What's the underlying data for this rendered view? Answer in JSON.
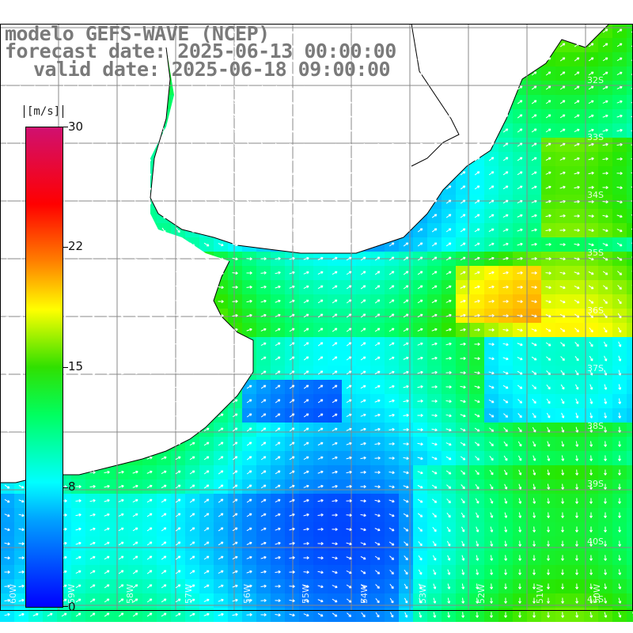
{
  "title": {
    "line1": "modelo GEFS-WAVE (NCEP)",
    "line2": "forecast date: 2025-06-13 00:00:00",
    "line3": "valid date: 2025-06-18 09:00:00"
  },
  "colorbar": {
    "unit": "[m/s]",
    "ticks": [
      "30",
      "22",
      "15",
      "8",
      "0"
    ],
    "colors": [
      "#0000ff",
      "#00a0ff",
      "#00ffff",
      "#00ff60",
      "#30e000",
      "#ffff00",
      "#ff8000",
      "#ff0000",
      "#d01070"
    ]
  },
  "grid": {
    "lat_labels": [
      "32S",
      "33S",
      "34S",
      "35S",
      "36S",
      "37S",
      "38S",
      "39S",
      "40S",
      "41S"
    ],
    "lon_labels": [
      "60W",
      "59W",
      "58W",
      "57W",
      "56W",
      "55W",
      "54W",
      "53W",
      "52W",
      "51W",
      "50W"
    ]
  },
  "map": {
    "land_color": "#ffffff",
    "coast_color": "#000000",
    "grid_color": "#888888",
    "arrow_color": "#ffffff"
  }
}
